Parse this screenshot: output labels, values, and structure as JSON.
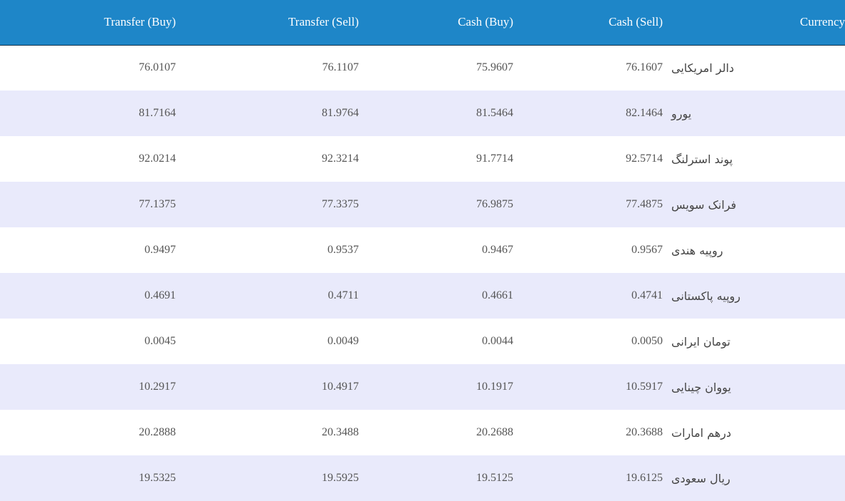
{
  "table": {
    "headers": {
      "transfer_buy": "Transfer (Buy)",
      "transfer_sell": "Transfer (Sell)",
      "cash_buy": "Cash (Buy)",
      "cash_sell": "Cash (Sell)",
      "currency": "Currency"
    },
    "rows": [
      {
        "transfer_buy": "76.0107",
        "transfer_sell": "76.1107",
        "cash_buy": "75.9607",
        "cash_sell": "76.1607",
        "currency": "دالر امریکایی"
      },
      {
        "transfer_buy": "81.7164",
        "transfer_sell": "81.9764",
        "cash_buy": "81.5464",
        "cash_sell": "82.1464",
        "currency": "یورو"
      },
      {
        "transfer_buy": "92.0214",
        "transfer_sell": "92.3214",
        "cash_buy": "91.7714",
        "cash_sell": "92.5714",
        "currency": "پوند استرلنگ"
      },
      {
        "transfer_buy": "77.1375",
        "transfer_sell": "77.3375",
        "cash_buy": "76.9875",
        "cash_sell": "77.4875",
        "currency": "فرانک سویس"
      },
      {
        "transfer_buy": "0.9497",
        "transfer_sell": "0.9537",
        "cash_buy": "0.9467",
        "cash_sell": "0.9567",
        "currency": "روپیه هندی"
      },
      {
        "transfer_buy": "0.4691",
        "transfer_sell": "0.4711",
        "cash_buy": "0.4661",
        "cash_sell": "0.4741",
        "currency": "روپیه پاکستانی"
      },
      {
        "transfer_buy": "0.0045",
        "transfer_sell": "0.0049",
        "cash_buy": "0.0044",
        "cash_sell": "0.0050",
        "currency": "تومان ایرانی"
      },
      {
        "transfer_buy": "10.2917",
        "transfer_sell": "10.4917",
        "cash_buy": "10.1917",
        "cash_sell": "10.5917",
        "currency": "یووان چینایی"
      },
      {
        "transfer_buy": "20.2888",
        "transfer_sell": "20.3488",
        "cash_buy": "20.2688",
        "cash_sell": "20.3688",
        "currency": "درهم امارات"
      },
      {
        "transfer_buy": "19.5325",
        "transfer_sell": "19.5925",
        "cash_buy": "19.5125",
        "cash_sell": "19.6125",
        "currency": "ریال سعودی"
      }
    ]
  },
  "colors": {
    "header_background": "#1e86c8",
    "header_text": "#ffffff",
    "row_stripe": "#e9eafb",
    "row_plain": "#ffffff",
    "cell_text": "#555555"
  }
}
